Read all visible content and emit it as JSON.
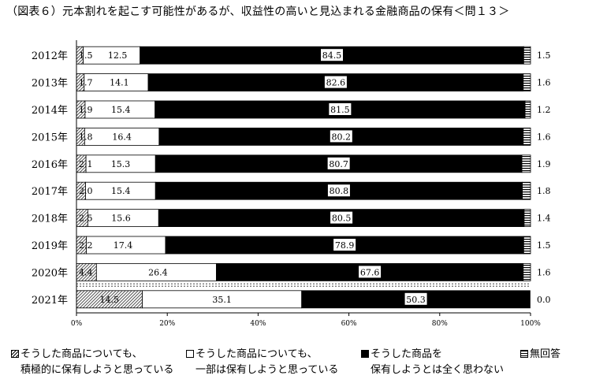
{
  "title": "（図表６）元本割れを起こす可能性があるが、収益性の高いと見込まれる金融商品の保有＜問１３＞",
  "legend": [
    {
      "line1": "そうした商品についても、",
      "line2": "積極的に保有しようと思っている",
      "color": "#ffffff",
      "pattern": "diagonal-hatch"
    },
    {
      "line1": "そうした商品についても、",
      "line2": "一部は保有しようと思っている",
      "color": "#ffffff",
      "pattern": "none"
    },
    {
      "line1": "そうした商品を",
      "line2": "保有しようとは全く思わない",
      "color": "#000000",
      "pattern": "solid"
    },
    {
      "line1": "無回答",
      "line2": "",
      "color": "#ffffff",
      "pattern": "horizontal-hatch"
    }
  ],
  "chart_data": {
    "type": "bar",
    "orientation": "horizontal",
    "stacked": true,
    "percent": true,
    "categories": [
      "2012年",
      "2013年",
      "2014年",
      "2015年",
      "2016年",
      "2017年",
      "2018年",
      "2019年",
      "2020年",
      "2021年"
    ],
    "series": [
      {
        "name": "そうした商品についても、積極的に保有しようと思っている",
        "values": [
          1.5,
          1.7,
          1.9,
          1.8,
          2.1,
          2.0,
          2.5,
          2.2,
          4.4,
          14.5
        ]
      },
      {
        "name": "そうした商品についても、一部は保有しようと思っている",
        "values": [
          12.5,
          14.1,
          15.4,
          16.4,
          15.3,
          15.4,
          15.6,
          17.4,
          26.4,
          35.1
        ]
      },
      {
        "name": "そうした商品を保有しようとは全く思わない",
        "values": [
          84.5,
          82.6,
          81.5,
          80.2,
          80.7,
          80.8,
          80.5,
          78.9,
          67.6,
          50.3
        ]
      },
      {
        "name": "無回答",
        "values": [
          1.5,
          1.6,
          1.2,
          1.6,
          1.9,
          1.8,
          1.4,
          1.5,
          1.6,
          0.0
        ]
      }
    ],
    "value_labels": [
      [
        "1.5",
        "12.5",
        "84.5",
        "1.5"
      ],
      [
        "1.7",
        "14.1",
        "82.6",
        "1.6"
      ],
      [
        "1.9",
        "15.4",
        "81.5",
        "1.2"
      ],
      [
        "1.8",
        "16.4",
        "80.2",
        "1.6"
      ],
      [
        "2.1",
        "15.3",
        "80.7",
        "1.9"
      ],
      [
        "2.0",
        "15.4",
        "80.8",
        "1.8"
      ],
      [
        "2.5",
        "15.6",
        "80.5",
        "1.4"
      ],
      [
        "2.2",
        "17.4",
        "78.9",
        "1.5"
      ],
      [
        "4.4",
        "26.4",
        "67.6",
        "1.6"
      ],
      [
        "14.5",
        "35.1",
        "50.3",
        "0.0"
      ]
    ],
    "xticks": [
      "0%",
      "20%",
      "40%",
      "60%",
      "80%",
      "100%"
    ],
    "xlim": [
      0,
      100
    ],
    "grid": false
  }
}
